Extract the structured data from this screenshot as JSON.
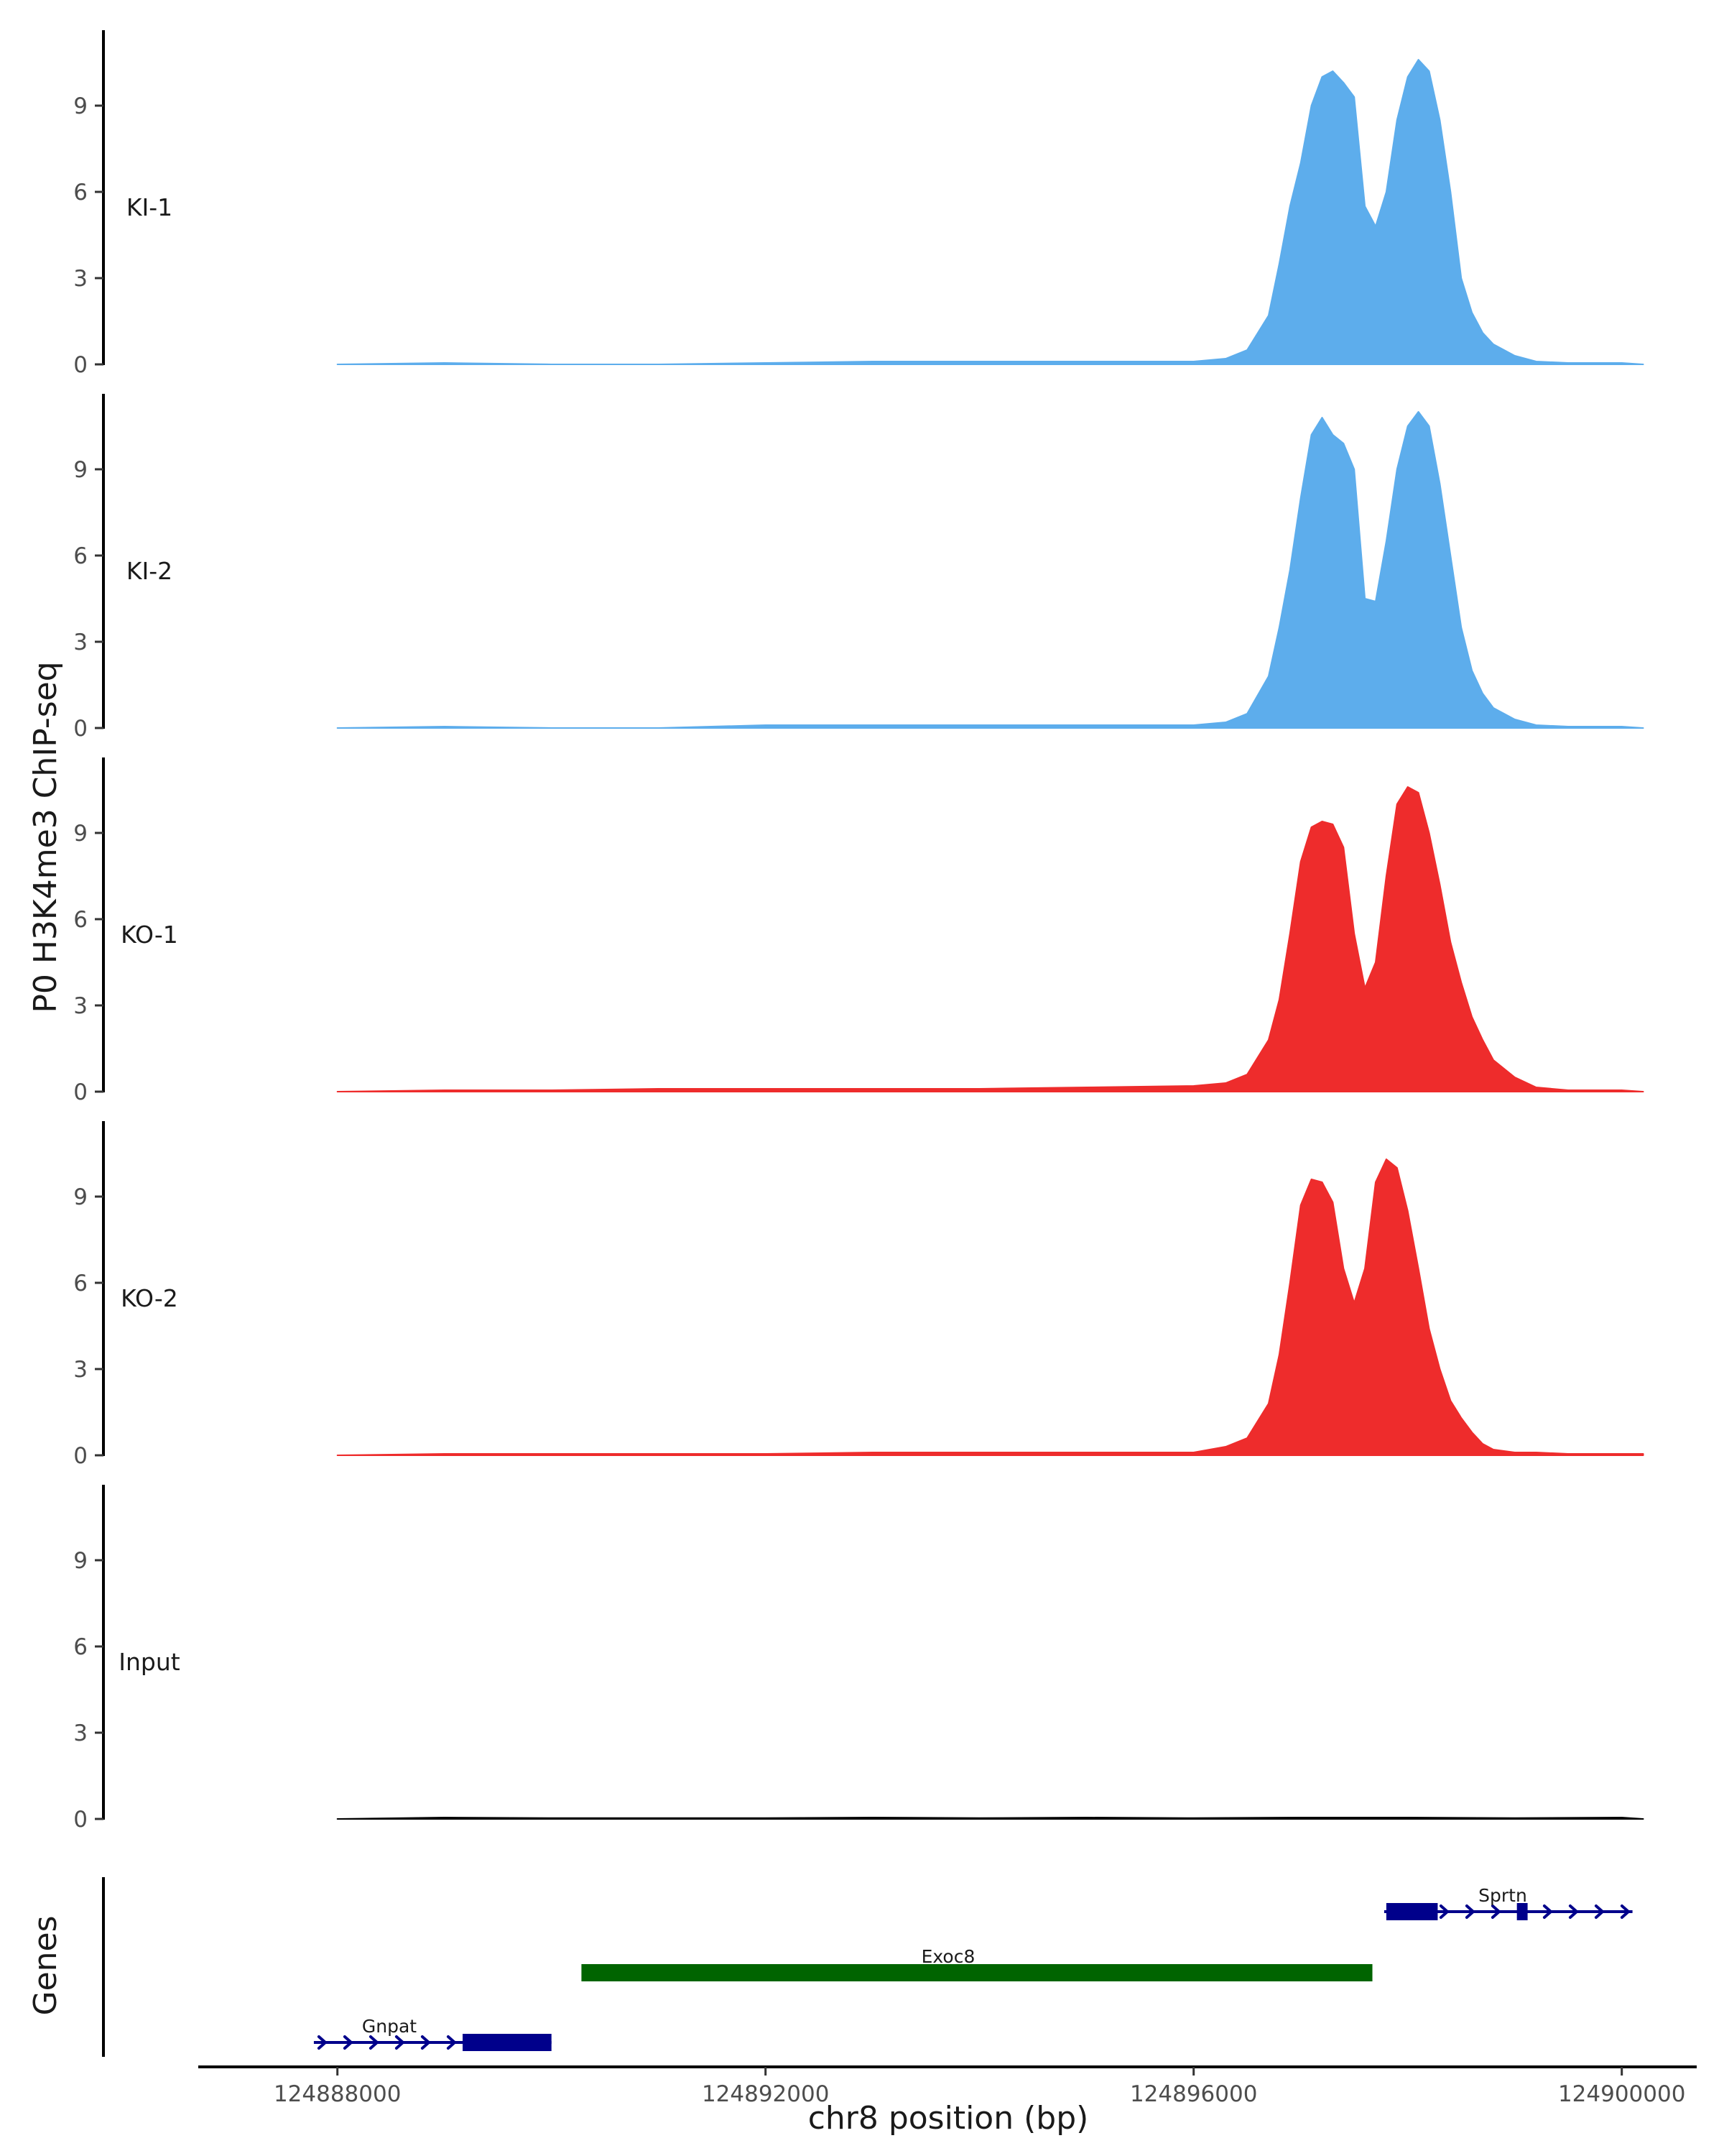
{
  "chart_data": {
    "type": "area",
    "title": "",
    "ylabel": "P0 H3K4me3 ChIP-seq",
    "genes_label": "Genes",
    "xlabel": "chr8 position (bp)",
    "xlim": [
      124886700,
      124900700
    ],
    "ylim": [
      0,
      11.5
    ],
    "x_ticks": [
      124888000,
      124892000,
      124896000,
      124900000
    ],
    "x_tick_labels": [
      "124888000",
      "124892000",
      "124896000",
      "124900000"
    ],
    "y_ticks": [
      0,
      3,
      6,
      9
    ],
    "y_tick_labels": [
      "0",
      "3",
      "6",
      "9"
    ],
    "colors": {
      "KI": "#5DADEC",
      "KO": "#EE2C2C",
      "Input": "#000000",
      "gene_blue": "#00008B",
      "gene_green": "#006400",
      "axis": "#000000"
    },
    "tracks": [
      {
        "name": "KI-1",
        "label": "KI-1",
        "color": "#5DADEC",
        "x": [
          124888000,
          124889000,
          124890000,
          124891000,
          124892000,
          124893000,
          124894000,
          124895000,
          124896000,
          124896300,
          124896500,
          124896700,
          124896800,
          124896900,
          124897000,
          124897100,
          124897200,
          124897300,
          124897400,
          124897500,
          124897600,
          124897700,
          124897800,
          124897900,
          124898000,
          124898100,
          124898200,
          124898300,
          124898400,
          124898500,
          124898600,
          124898700,
          124898800,
          124899000,
          124899200,
          124899500,
          124900000,
          124900200
        ],
        "values": [
          0,
          0.05,
          0,
          0,
          0.05,
          0.1,
          0.1,
          0.1,
          0.1,
          0.2,
          0.5,
          1.7,
          3.5,
          5.5,
          7,
          9,
          10,
          10.2,
          9.8,
          9.3,
          5.5,
          4.8,
          6,
          8.5,
          10,
          10.6,
          10.2,
          8.5,
          6,
          3,
          1.8,
          1.1,
          0.7,
          0.3,
          0.1,
          0.05,
          0.05,
          0
        ]
      },
      {
        "name": "KI-2",
        "label": "KI-2",
        "color": "#5DADEC",
        "x": [
          124888000,
          124889000,
          124890000,
          124891000,
          124892000,
          124893000,
          124894000,
          124895000,
          124896000,
          124896300,
          124896500,
          124896700,
          124896800,
          124896900,
          124897000,
          124897100,
          124897200,
          124897300,
          124897400,
          124897500,
          124897600,
          124897700,
          124897800,
          124897900,
          124898000,
          124898100,
          124898200,
          124898300,
          124898400,
          124898500,
          124898600,
          124898700,
          124898800,
          124899000,
          124899200,
          124899500,
          124900000,
          124900200
        ],
        "values": [
          0,
          0.05,
          0,
          0,
          0.1,
          0.1,
          0.1,
          0.1,
          0.1,
          0.2,
          0.5,
          1.8,
          3.5,
          5.5,
          8,
          10.2,
          10.8,
          10.2,
          9.9,
          9.0,
          4.5,
          4.4,
          6.5,
          9.0,
          10.5,
          11.0,
          10.5,
          8.5,
          6,
          3.5,
          2,
          1.2,
          0.7,
          0.3,
          0.1,
          0.05,
          0.05,
          0
        ]
      },
      {
        "name": "KO-1",
        "label": "KO-1",
        "color": "#EE2C2C",
        "x": [
          124888000,
          124889000,
          124890000,
          124891000,
          124892000,
          124893000,
          124894000,
          124895000,
          124896000,
          124896300,
          124896500,
          124896700,
          124896800,
          124896900,
          124897000,
          124897100,
          124897200,
          124897300,
          124897400,
          124897500,
          124897600,
          124897700,
          124897800,
          124897900,
          124898000,
          124898100,
          124898200,
          124898300,
          124898400,
          124898500,
          124898600,
          124898700,
          124898800,
          124899000,
          124899200,
          124899500,
          124900000,
          124900200
        ],
        "values": [
          0,
          0.05,
          0.05,
          0.1,
          0.1,
          0.1,
          0.1,
          0.15,
          0.2,
          0.3,
          0.6,
          1.8,
          3.2,
          5.5,
          8,
          9.2,
          9.4,
          9.3,
          8.5,
          5.5,
          3.6,
          4.5,
          7.5,
          10.0,
          10.6,
          10.4,
          9.0,
          7.2,
          5.2,
          3.8,
          2.6,
          1.8,
          1.1,
          0.5,
          0.15,
          0.05,
          0.05,
          0
        ]
      },
      {
        "name": "KO-2",
        "label": "KO-2",
        "color": "#EE2C2C",
        "x": [
          124888000,
          124889000,
          124890000,
          124891000,
          124892000,
          124893000,
          124894000,
          124895000,
          124896000,
          124896300,
          124896500,
          124896700,
          124896800,
          124896900,
          124897000,
          124897100,
          124897200,
          124897300,
          124897400,
          124897500,
          124897600,
          124897700,
          124897800,
          124897900,
          124898000,
          124898100,
          124898200,
          124898300,
          124898400,
          124898500,
          124898600,
          124898700,
          124898800,
          124899000,
          124899200,
          124899500,
          124900000,
          124900200
        ],
        "values": [
          0,
          0.05,
          0.05,
          0.05,
          0.05,
          0.1,
          0.1,
          0.1,
          0.1,
          0.3,
          0.6,
          1.8,
          3.5,
          6,
          8.7,
          9.6,
          9.5,
          8.8,
          6.5,
          5.3,
          6.5,
          9.5,
          10.3,
          10.0,
          8.5,
          6.5,
          4.4,
          3.0,
          1.9,
          1.3,
          0.8,
          0.4,
          0.2,
          0.1,
          0.1,
          0.05,
          0.05,
          0.05
        ]
      },
      {
        "name": "Input",
        "label": "Input",
        "color": "#000000",
        "x": [
          124888000,
          124889000,
          124890000,
          124891000,
          124892000,
          124893000,
          124894000,
          124895000,
          124896000,
          124897000,
          124898000,
          124899000,
          124900000,
          124900200
        ],
        "values": [
          0,
          0.05,
          0.03,
          0.03,
          0.03,
          0.05,
          0.03,
          0.05,
          0.03,
          0.05,
          0.05,
          0.03,
          0.05,
          0
        ]
      }
    ],
    "genes": [
      {
        "name": "Gnpat",
        "label": "Gnpat",
        "start": 124887780,
        "end": 124890000,
        "strand": "+",
        "color": "#00008B",
        "row": 0,
        "exons": [
          [
            124889170,
            124890000
          ]
        ]
      },
      {
        "name": "Exoc8",
        "label": "Exoc8",
        "start": 124890280,
        "end": 124897670,
        "strand": "",
        "color": "#006400",
        "row": 1,
        "exons": [
          [
            124890280,
            124897670
          ]
        ]
      },
      {
        "name": "Sprtn",
        "label": "Sprtn",
        "start": 124897780,
        "end": 124900100,
        "strand": "+",
        "color": "#00008B",
        "row": 2,
        "exons": [
          [
            124897800,
            124898280
          ],
          [
            124899020,
            124899120
          ]
        ]
      }
    ]
  }
}
